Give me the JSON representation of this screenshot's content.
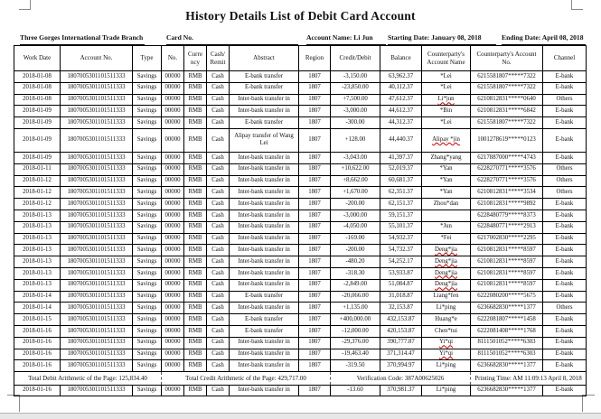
{
  "page": {
    "title": "History Details List of Debit Card Account",
    "info": {
      "branch": "Three Gorges International Trade Branch",
      "card_no_label": "Card No.",
      "account_name": "Account Name: Li Jun",
      "starting_date": "Starting Date: January 08, 2018",
      "ending_date": "Ending Date: April 08, 2018"
    }
  },
  "table": {
    "headers": [
      {
        "key": "date",
        "label": "Work Date"
      },
      {
        "key": "account_no",
        "label": "Account No."
      },
      {
        "key": "type",
        "label": "Type"
      },
      {
        "key": "no",
        "label": "No."
      },
      {
        "key": "currency",
        "label": "Curre ncy"
      },
      {
        "key": "cash_remit",
        "label": "Cash/ Remit"
      },
      {
        "key": "abstract",
        "label": "Abstract"
      },
      {
        "key": "region",
        "label": "Region"
      },
      {
        "key": "credit_debit",
        "label": "Credit/Debit"
      },
      {
        "key": "balance",
        "label": "Balance"
      },
      {
        "key": "cp_name",
        "label": "Counterparty's Account Name"
      },
      {
        "key": "cp_account",
        "label": "Counterparty's Account No."
      },
      {
        "key": "channel",
        "label": "Channel"
      }
    ],
    "row_defaults": {
      "account_no": "1807005301101511333",
      "type": "Savings",
      "no": "00000",
      "currency": "RMB",
      "cash_remit": "Cash",
      "region": "1807"
    },
    "rows": [
      {
        "date": "2018-01-08",
        "abstract": "E-bank transfer",
        "credit_debit": "-3,150.00",
        "balance": "63,962.37",
        "cp_name": "*Lei",
        "cp_account": "6215581807*****7322",
        "channel": "E-bank"
      },
      {
        "date": "2018-01-08",
        "abstract": "E-bank transfer",
        "credit_debit": "-23,850.00",
        "balance": "40,112.37",
        "cp_name": "*Lei",
        "cp_account": "6215581807*****7322",
        "channel": "E-bank"
      },
      {
        "date": "2018-01-08",
        "abstract": "Inter-bank transfer in",
        "credit_debit": "+7,500.00",
        "balance": "47,612.37",
        "cp_name": "Li*jun",
        "squiggle": true,
        "cp_account": "6210812831*****0640",
        "channel": "Others"
      },
      {
        "date": "2018-01-09",
        "abstract": "Inter-bank transfer in",
        "credit_debit": "-3,000.00",
        "balance": "44,612.37",
        "cp_name": "*Bin",
        "cp_account": "6210812831*****6842",
        "channel": "E-bank"
      },
      {
        "date": "2018-01-09",
        "abstract": "E-bank transfer",
        "credit_debit": "-300.00",
        "balance": "44,312.37",
        "cp_name": "*Lei",
        "cp_account": "6215581807*****7322",
        "channel": "E-bank"
      },
      {
        "date": "2018-01-09",
        "abstract": "Alipay transfer of Wang Lei",
        "credit_debit": "+128.00",
        "balance": "44,440.37",
        "cp_name": "Alipay *jin",
        "squiggle": true,
        "cp_account": "1001278619*****0123",
        "channel": "E-bank",
        "tall": true
      },
      {
        "date": "2018-01-09",
        "abstract": "Inter-bank transfer in",
        "credit_debit": "-3,043.00",
        "balance": "41,397.37",
        "cp_name": "Zhang*yang",
        "cp_account": "6217887000*****4743",
        "channel": "E-bank"
      },
      {
        "date": "2018-01-11",
        "abstract": "Inter-bank transfer in",
        "credit_debit": "+10,622.00",
        "balance": "52,019.37",
        "cp_name": "*Yan",
        "cp_account": "6228270771*****3576",
        "channel": "Others"
      },
      {
        "date": "2018-01-12",
        "abstract": "Inter-bank transfer in",
        "credit_debit": "+8,662.00",
        "balance": "60,681.37",
        "cp_name": "*Yan",
        "cp_account": "6228270771*****3576",
        "channel": "Others"
      },
      {
        "date": "2018-01-12",
        "abstract": "Inter-bank transfer in",
        "credit_debit": "+1,670.00",
        "balance": "62,351.37",
        "cp_name": "*Yan",
        "cp_account": "6210812831*****3534",
        "channel": "Others"
      },
      {
        "date": "2018-01-12",
        "abstract": "Inter-bank transfer in",
        "credit_debit": "-200.00",
        "balance": "62,151.37",
        "cp_name": "Zhou*dan",
        "cp_account": "6210812831*****9892",
        "channel": "E-bank"
      },
      {
        "date": "2018-01-13",
        "abstract": "Inter-bank transfer in",
        "credit_debit": "-3,000.00",
        "balance": "59,151.37",
        "cp_name": "",
        "cp_account": "6228480779*****8373",
        "channel": "E-bank"
      },
      {
        "date": "2018-01-13",
        "abstract": "Inter-bank transfer in",
        "credit_debit": "-4,050.00",
        "balance": "55,101.37",
        "cp_name": "*Jun",
        "cp_account": "6228480771*****2913",
        "channel": "E-bank"
      },
      {
        "date": "2018-01-13",
        "abstract": "Inter-bank transfer in",
        "credit_debit": "-169.00",
        "balance": "54,932.37",
        "cp_name": "*Fei",
        "cp_account": "6217002830*****2295",
        "channel": "E-bank"
      },
      {
        "date": "2018-01-13",
        "abstract": "Inter-bank transfer in",
        "credit_debit": "-200.00",
        "balance": "54,732.37",
        "cp_name": "Deng*jia",
        "squiggle": true,
        "cp_account": "6210812831*****8597",
        "channel": "E-bank"
      },
      {
        "date": "2018-01-13",
        "abstract": "Inter-bank transfer in",
        "credit_debit": "-480.20",
        "balance": "54,252.17",
        "cp_name": "Deng*jia",
        "squiggle": true,
        "cp_account": "6210812831*****8597",
        "channel": "E-bank"
      },
      {
        "date": "2018-01-13",
        "abstract": "Inter-bank transfer in",
        "credit_debit": "-318.30",
        "balance": "53,933.87",
        "cp_name": "Deng*jia",
        "squiggle": true,
        "cp_account": "6210812831*****8597",
        "channel": "E-bank"
      },
      {
        "date": "2018-01-13",
        "abstract": "Inter-bank transfer in",
        "credit_debit": "-2,849.00",
        "balance": "51,084.87",
        "cp_name": "Deng*jia",
        "squiggle": true,
        "cp_account": "6210812831*****8597",
        "channel": "E-bank"
      },
      {
        "date": "2018-01-14",
        "abstract": "E-bank transfer",
        "credit_debit": "-20,066.00",
        "balance": "31,018.87",
        "cp_name": "Liang*fen",
        "cp_account": "6222080200*****5675",
        "channel": "E-bank"
      },
      {
        "date": "2018-01-14",
        "abstract": "Inter-bank transfer in",
        "credit_debit": "+1,135.00",
        "balance": "32,153.87",
        "cp_name": "Li*ping",
        "cp_account": "6236682830*****1377",
        "channel": "Others"
      },
      {
        "date": "2018-01-15",
        "abstract": "E-bank transfer",
        "credit_debit": "+400,000.00",
        "balance": "432,153.87",
        "cp_name": "Huang*e",
        "cp_account": "6222081807*****1458",
        "channel": "E-bank"
      },
      {
        "date": "2018-01-16",
        "abstract": "E-bank transfer",
        "credit_debit": "-12,000.00",
        "balance": "420,153.87",
        "cp_name": "Chen*tui",
        "cp_account": "6222081408*****1768",
        "channel": "E-bank"
      },
      {
        "date": "2018-01-16",
        "abstract": "Inter-bank transfer in",
        "credit_debit": "-29,376.00",
        "balance": "390,777.87",
        "cp_name": "Yi*qi",
        "squiggle": true,
        "cp_account": "8111501052*****6303",
        "channel": "E-bank"
      },
      {
        "date": "2018-01-16",
        "abstract": "Inter-bank transfer in",
        "credit_debit": "-19,463.40",
        "balance": "371,314.47",
        "cp_name": "Yi*qi",
        "squiggle": true,
        "cp_account": "8111501052*****6303",
        "channel": "E-bank"
      },
      {
        "date": "2018-01-16",
        "abstract": "Inter-bank transfer in",
        "credit_debit": "-319.50",
        "balance": "370,994.97",
        "cp_name": "Li*ping",
        "cp_account": "6236682830*****1377",
        "channel": "E-bank"
      }
    ],
    "summary": {
      "debit": "Total Debit Arithmetic of the Page: 125,834.40",
      "credit": "Total Credit Arithmetic of the Page: 429,717.00",
      "verification": "Verification Code: 387A00625026",
      "printing": "Printing Time: AM 11:09:13 April 8, 2018"
    },
    "rows_after": [
      {
        "date": "2018-01-16",
        "abstract": "Inter-bank transfer in",
        "credit_debit": "-13.60",
        "balance": "370,981.37",
        "cp_name": "Li*ping",
        "cp_account": "6236682830*****1377",
        "channel": "E-bank"
      }
    ]
  },
  "colors": {
    "text": "#111111",
    "table_border": "#000000",
    "spellcheck_squiggle": "#cc0000",
    "page_edge_strip": "#e7e7e7"
  }
}
